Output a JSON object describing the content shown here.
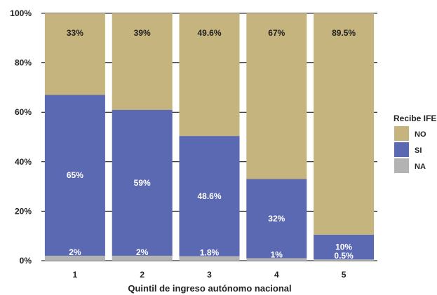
{
  "chart_data": {
    "type": "bar",
    "stacked": true,
    "categories": [
      "1",
      "2",
      "3",
      "4",
      "5"
    ],
    "series": [
      {
        "name": "NA",
        "values": [
          2.0,
          2.0,
          1.8,
          1.0,
          0.5
        ],
        "labels": [
          "2%",
          "2%",
          "1.8%",
          "1%",
          "0.5%"
        ],
        "color": "#b3b3b3",
        "label_color": "#ffffff"
      },
      {
        "name": "SI",
        "values": [
          65.0,
          59.0,
          48.6,
          32.0,
          10.0
        ],
        "labels": [
          "65%",
          "59%",
          "48.6%",
          "32%",
          "10%"
        ],
        "color": "#5b68b2",
        "label_color": "#ffffff"
      },
      {
        "name": "NO",
        "values": [
          33.0,
          39.0,
          49.6,
          67.0,
          89.5
        ],
        "labels": [
          "33%",
          "39%",
          "49.6%",
          "67%",
          "89.5%"
        ],
        "color": "#c6b47f",
        "label_color": "#222222"
      }
    ],
    "xlabel": "Quintil de ingreso autónomo nacional",
    "ylabel": "",
    "ylim": [
      0,
      100
    ],
    "yticks": [
      "0%",
      "20%",
      "40%",
      "60%",
      "80%",
      "100%"
    ],
    "grid": true,
    "legend": {
      "title": "Recibe IFE",
      "position": "right",
      "entries": [
        "NO",
        "SI",
        "NA"
      ]
    }
  }
}
